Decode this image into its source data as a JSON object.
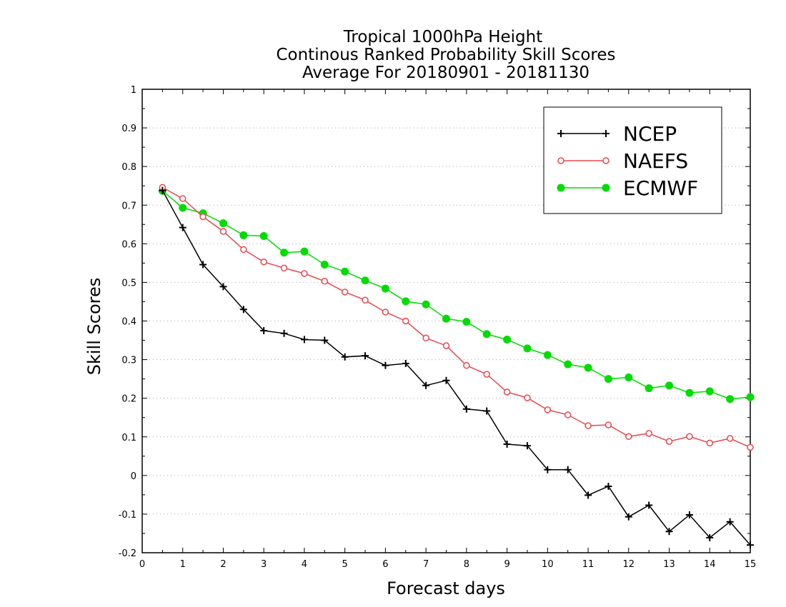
{
  "chart_data": {
    "type": "line",
    "title": [
      "Tropical 1000hPa Height",
      "Continous Ranked Probability Skill Scores",
      "Average For 20180901 - 20181130"
    ],
    "xlabel": "Forecast days",
    "ylabel": "Skill Scores",
    "xlim": [
      0,
      15
    ],
    "ylim": [
      -0.2,
      1
    ],
    "xticks": [
      0,
      1,
      2,
      3,
      4,
      5,
      6,
      7,
      8,
      9,
      10,
      11,
      12,
      13,
      14,
      15
    ],
    "yticks": [
      -0.2,
      -0.1,
      0,
      0.1,
      0.2,
      0.3,
      0.4,
      0.5,
      0.6,
      0.7,
      0.8,
      0.9,
      1
    ],
    "ytick_labels": [
      "-0.2",
      "-0.1",
      "0",
      "0.1",
      "0.2",
      "0.3",
      "0.4",
      "0.5",
      "0.6",
      "0.7",
      "0.8",
      "0.9",
      "1"
    ],
    "grid": "horizontal dotted",
    "legend_position": "top-right",
    "x": [
      0.5,
      1,
      1.5,
      2,
      2.5,
      3,
      3.5,
      4,
      4.5,
      5,
      5.5,
      6,
      6.5,
      7,
      7.5,
      8,
      8.5,
      9,
      9.5,
      10,
      10.5,
      11,
      11.5,
      12,
      12.5,
      13,
      13.5,
      14,
      14.5,
      15
    ],
    "series": [
      {
        "name": "NCEP",
        "color": "#000000",
        "marker": "plus",
        "values": [
          0.738,
          0.642,
          0.546,
          0.489,
          0.43,
          0.375,
          0.368,
          0.352,
          0.35,
          0.307,
          0.31,
          0.285,
          0.29,
          0.233,
          0.246,
          0.172,
          0.167,
          0.081,
          0.077,
          0.015,
          0.015,
          -0.051,
          -0.028,
          -0.107,
          -0.077,
          -0.145,
          -0.102,
          -0.161,
          -0.12,
          -0.18
        ]
      },
      {
        "name": "NAEFS",
        "color": "#e8484f",
        "marker": "open-circle",
        "values": [
          0.746,
          0.717,
          0.67,
          0.632,
          0.585,
          0.553,
          0.537,
          0.523,
          0.503,
          0.475,
          0.454,
          0.423,
          0.4,
          0.356,
          0.336,
          0.285,
          0.262,
          0.216,
          0.201,
          0.17,
          0.157,
          0.129,
          0.131,
          0.101,
          0.109,
          0.088,
          0.101,
          0.084,
          0.096,
          0.073
        ]
      },
      {
        "name": "ECMWF",
        "color": "#00dc00",
        "marker": "filled-circle",
        "values": [
          0.737,
          0.693,
          0.679,
          0.653,
          0.622,
          0.62,
          0.577,
          0.58,
          0.546,
          0.528,
          0.505,
          0.484,
          0.451,
          0.443,
          0.406,
          0.398,
          0.366,
          0.352,
          0.329,
          0.312,
          0.288,
          0.279,
          0.25,
          0.254,
          0.226,
          0.233,
          0.214,
          0.218,
          0.198,
          0.203
        ]
      }
    ]
  }
}
